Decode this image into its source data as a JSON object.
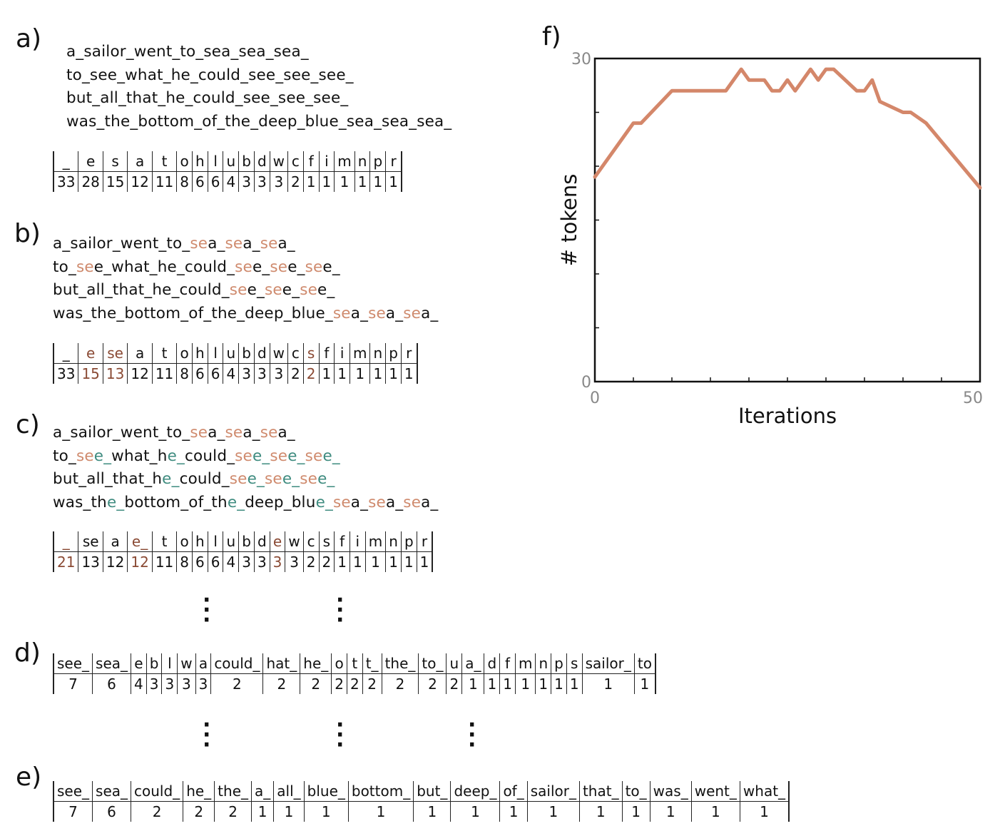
{
  "panels": {
    "a": {
      "label": "a)",
      "lines": [
        [
          {
            "t": "a_sailor_went_to_sea_sea_sea_",
            "c": 0
          }
        ],
        [
          {
            "t": "to_see_what_he_could_see_see_see_",
            "c": 0
          }
        ],
        [
          {
            "t": "but_all_that_he_could_see_see_see_",
            "c": 0
          }
        ],
        [
          {
            "t": "was_the_bottom_of_the_deep_blue_sea_sea_sea_",
            "c": 0
          }
        ]
      ],
      "table": {
        "tokens": [
          "_",
          "e",
          "s",
          "a",
          "t",
          "o",
          "h",
          "l",
          "u",
          "b",
          "d",
          "w",
          "c",
          "f",
          "i",
          "m",
          "n",
          "p",
          "r"
        ],
        "counts": [
          "33",
          "28",
          "15",
          "12",
          "11",
          "8",
          "6",
          "6",
          "4",
          "3",
          "3",
          "3",
          "2",
          "1",
          "1",
          "1",
          "1",
          "1",
          "1"
        ],
        "highlight": []
      }
    },
    "b": {
      "label": "b)",
      "lines": [
        [
          {
            "t": "a_sailor_went_to_",
            "c": 0
          },
          {
            "t": "se",
            "c": 1
          },
          {
            "t": "a_",
            "c": 0
          },
          {
            "t": "se",
            "c": 1
          },
          {
            "t": "a_",
            "c": 0
          },
          {
            "t": "se",
            "c": 1
          },
          {
            "t": "a_",
            "c": 0
          }
        ],
        [
          {
            "t": "to_",
            "c": 0
          },
          {
            "t": "se",
            "c": 1
          },
          {
            "t": "e_what_he_could_",
            "c": 0
          },
          {
            "t": "se",
            "c": 1
          },
          {
            "t": "e_",
            "c": 0
          },
          {
            "t": "se",
            "c": 1
          },
          {
            "t": "e_",
            "c": 0
          },
          {
            "t": "se",
            "c": 1
          },
          {
            "t": "e_",
            "c": 0
          }
        ],
        [
          {
            "t": "but_all_that_he_could_",
            "c": 0
          },
          {
            "t": "se",
            "c": 1
          },
          {
            "t": "e_",
            "c": 0
          },
          {
            "t": "se",
            "c": 1
          },
          {
            "t": "e_",
            "c": 0
          },
          {
            "t": "se",
            "c": 1
          },
          {
            "t": "e_",
            "c": 0
          }
        ],
        [
          {
            "t": "was_the_bottom_of_the_deep_blue_",
            "c": 0
          },
          {
            "t": "se",
            "c": 1
          },
          {
            "t": "a_",
            "c": 0
          },
          {
            "t": "se",
            "c": 1
          },
          {
            "t": "a_",
            "c": 0
          },
          {
            "t": "se",
            "c": 1
          },
          {
            "t": "a_",
            "c": 0
          }
        ]
      ],
      "table": {
        "tokens": [
          "_",
          "e",
          "se",
          "a",
          "t",
          "o",
          "h",
          "l",
          "u",
          "b",
          "d",
          "w",
          "c",
          "s",
          "f",
          "i",
          "m",
          "n",
          "p",
          "r"
        ],
        "counts": [
          "33",
          "15",
          "13",
          "12",
          "11",
          "8",
          "6",
          "6",
          "4",
          "3",
          "3",
          "3",
          "2",
          "2",
          "1",
          "1",
          "1",
          "1",
          "1",
          "1"
        ],
        "highlight": [
          1,
          2,
          13
        ]
      }
    },
    "c": {
      "label": "c)",
      "lines": [
        [
          {
            "t": "a_sailor_went_to_",
            "c": 0
          },
          {
            "t": "se",
            "c": 1
          },
          {
            "t": "a_",
            "c": 0
          },
          {
            "t": "se",
            "c": 1
          },
          {
            "t": "a_",
            "c": 0
          },
          {
            "t": "se",
            "c": 1
          },
          {
            "t": "a_",
            "c": 0
          }
        ],
        [
          {
            "t": "to_",
            "c": 0
          },
          {
            "t": "se",
            "c": 1
          },
          {
            "t": "e_",
            "c": 2
          },
          {
            "t": "what_h",
            "c": 0
          },
          {
            "t": "e_",
            "c": 2
          },
          {
            "t": "could_",
            "c": 0
          },
          {
            "t": "se",
            "c": 1
          },
          {
            "t": "e_",
            "c": 2
          },
          {
            "t": "se",
            "c": 1
          },
          {
            "t": "e_",
            "c": 2
          },
          {
            "t": "se",
            "c": 1
          },
          {
            "t": "e_",
            "c": 2
          }
        ],
        [
          {
            "t": "but_all_that_h",
            "c": 0
          },
          {
            "t": "e_",
            "c": 2
          },
          {
            "t": "could_",
            "c": 0
          },
          {
            "t": "se",
            "c": 1
          },
          {
            "t": "e_",
            "c": 2
          },
          {
            "t": "se",
            "c": 1
          },
          {
            "t": "e_",
            "c": 2
          },
          {
            "t": "se",
            "c": 1
          },
          {
            "t": "e_",
            "c": 2
          }
        ],
        [
          {
            "t": "was_th",
            "c": 0
          },
          {
            "t": "e_",
            "c": 2
          },
          {
            "t": "bottom_of_th",
            "c": 0
          },
          {
            "t": "e_",
            "c": 2
          },
          {
            "t": "deep_blu",
            "c": 0
          },
          {
            "t": "e_",
            "c": 2
          },
          {
            "t": "se",
            "c": 1
          },
          {
            "t": "a_",
            "c": 0
          },
          {
            "t": "se",
            "c": 1
          },
          {
            "t": "a_",
            "c": 0
          },
          {
            "t": "se",
            "c": 1
          },
          {
            "t": "a_",
            "c": 0
          }
        ]
      ],
      "table": {
        "tokens": [
          "_",
          "se",
          "a",
          "e_",
          "t",
          "o",
          "h",
          "l",
          "u",
          "b",
          "d",
          "e",
          "w",
          "c",
          "s",
          "f",
          "i",
          "m",
          "n",
          "p",
          "r"
        ],
        "counts": [
          "21",
          "13",
          "12",
          "12",
          "11",
          "8",
          "6",
          "6",
          "4",
          "3",
          "3",
          "3",
          "3",
          "2",
          "2",
          "1",
          "1",
          "1",
          "1",
          "1",
          "1"
        ],
        "highlight": [
          0,
          3,
          11
        ]
      }
    },
    "d": {
      "label": "d)",
      "table": {
        "tokens": [
          "see_",
          "sea_",
          "e",
          "b",
          "l",
          "w",
          "a",
          "could_",
          "hat_",
          "he_",
          "o",
          "t",
          "t_",
          "the_",
          "to_",
          "u",
          "a_",
          "d",
          "f",
          "m",
          "n",
          "p",
          "s",
          "sailor_",
          "to"
        ],
        "counts": [
          "7",
          "6",
          "4",
          "3",
          "3",
          "3",
          "3",
          "2",
          "2",
          "2",
          "2",
          "2",
          "2",
          "2",
          "2",
          "2",
          "1",
          "1",
          "1",
          "1",
          "1",
          "1",
          "1",
          "1",
          "1"
        ],
        "highlight": []
      }
    },
    "e": {
      "label": "e)",
      "table": {
        "tokens": [
          "see_",
          "sea_",
          "could_",
          "he_",
          "the_",
          "a_",
          "all_",
          "blue_",
          "bottom_",
          "but_",
          "deep_",
          "of_",
          "sailor_",
          "that_",
          "to_",
          "was_",
          "went_",
          "what_"
        ],
        "counts": [
          "7",
          "6",
          "2",
          "2",
          "2",
          "1",
          "1",
          "1",
          "1",
          "1",
          "1",
          "1",
          "1",
          "1",
          "1",
          "1",
          "1",
          "1"
        ],
        "highlight": []
      }
    },
    "f": {
      "label": "f)"
    }
  },
  "colors": {
    "merge_new": "#cf8a6d",
    "merge_second": "#3e8b7f",
    "count_highlight": "#8a4a34",
    "line": "#d4876a"
  },
  "chart_data": {
    "type": "line",
    "xlabel": "Iterations",
    "ylabel": "# tokens",
    "xlim": [
      0,
      50
    ],
    "ylim": [
      0,
      30
    ],
    "x_tick_labels": [
      "0",
      "50"
    ],
    "y_tick_labels": [
      "0",
      "30"
    ],
    "grid": false,
    "x": [
      0,
      5,
      6,
      10,
      17,
      19,
      20,
      22,
      23,
      24,
      25,
      26,
      28,
      29,
      30,
      31,
      34,
      35,
      36,
      37,
      40,
      41,
      43,
      50
    ],
    "y": [
      19,
      24,
      24,
      27,
      27,
      29,
      28,
      28,
      27,
      27,
      28,
      27,
      29,
      28,
      29,
      29,
      27,
      27,
      28,
      26,
      25,
      25,
      24,
      18
    ],
    "series": [
      {
        "color": "#d4876a"
      }
    ]
  }
}
